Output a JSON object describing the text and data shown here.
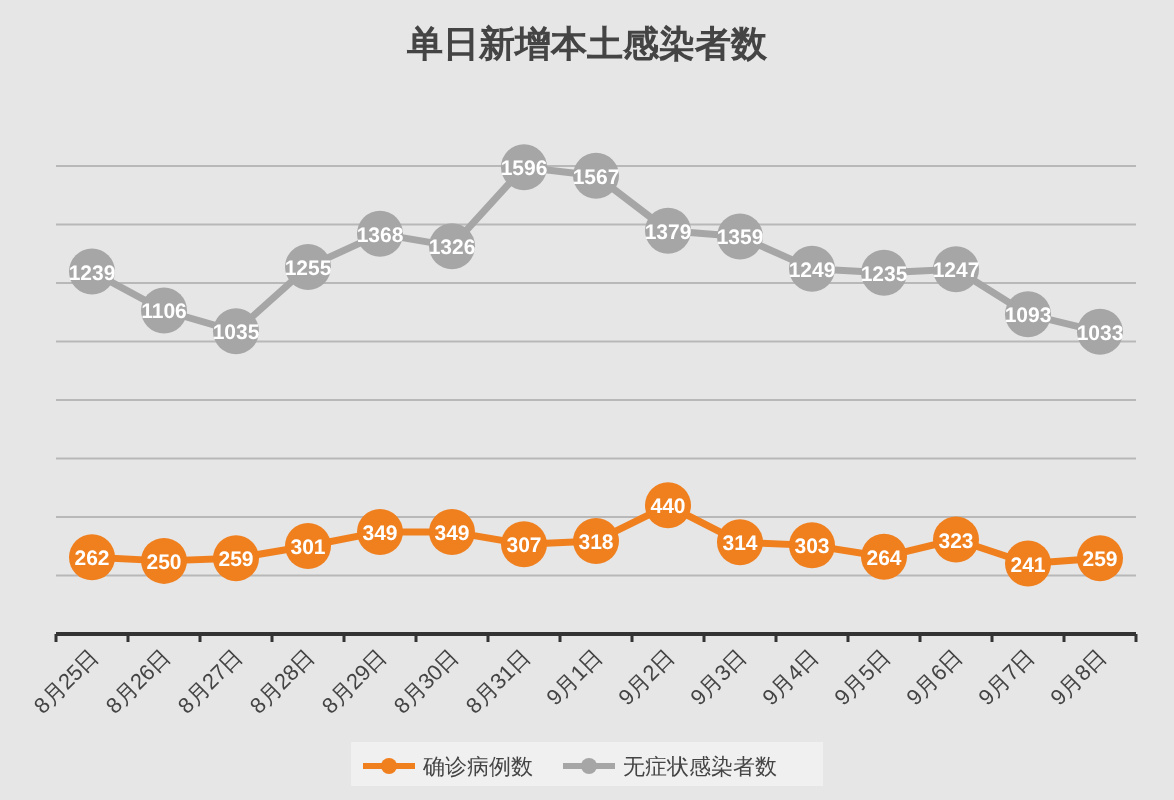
{
  "chart_data": {
    "type": "line",
    "title": "单日新增本土感染者数",
    "categories": [
      "8月25日",
      "8月26日",
      "8月27日",
      "8月28日",
      "8月29日",
      "8月30日",
      "8月31日",
      "9月1日",
      "9月2日",
      "9月3日",
      "9月4日",
      "9月5日",
      "9月6日",
      "9月7日",
      "9月8日"
    ],
    "series": [
      {
        "name": "确诊病例数",
        "color": "#f07f1e",
        "values": [
          262,
          250,
          259,
          301,
          349,
          349,
          307,
          318,
          440,
          314,
          303,
          264,
          323,
          241,
          259
        ]
      },
      {
        "name": "无症状感染者数",
        "color": "#a6a6a6",
        "values": [
          1239,
          1106,
          1035,
          1255,
          1368,
          1326,
          1596,
          1567,
          1379,
          1359,
          1249,
          1235,
          1247,
          1093,
          1033
        ]
      }
    ],
    "ylim": [
      0,
      1600
    ],
    "yticks": [
      {
        "value": 0,
        "label": null
      },
      {
        "value": 200,
        "label": null
      },
      {
        "value": 400,
        "label": null
      },
      {
        "value": 600,
        "label": null
      },
      {
        "value": 800,
        "label": null
      },
      {
        "value": 1000,
        "label": null
      },
      {
        "value": 1200,
        "label": null
      },
      {
        "value": 1400,
        "label": null
      },
      {
        "value": 1600,
        "label": null
      }
    ],
    "tick_labels": "x",
    "grid": "y",
    "legend": "bottom",
    "marker": "circle",
    "line_style": "solid",
    "data_labels": true
  }
}
